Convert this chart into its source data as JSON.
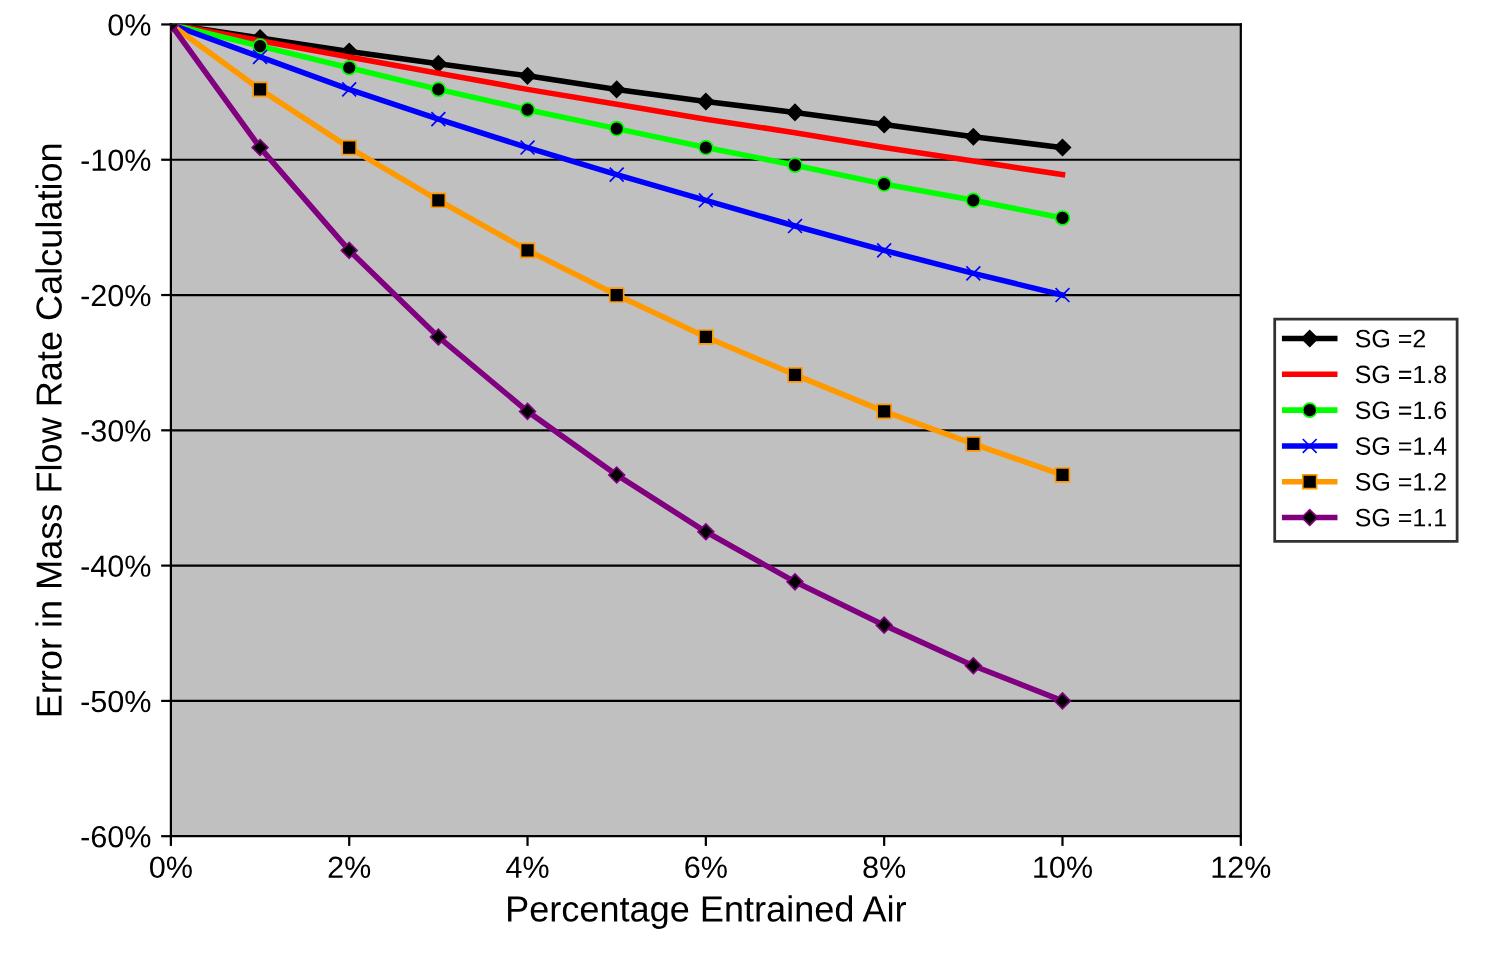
{
  "chart_data": {
    "type": "line",
    "xlabel": "Percentage Entrained Air",
    "ylabel": "Error in Mass Flow Rate Calculation",
    "x": [
      0,
      1,
      2,
      3,
      4,
      5,
      6,
      7,
      8,
      9,
      10
    ],
    "series": [
      {
        "name": "SG =2",
        "color": "#000000",
        "marker": "diamond",
        "values": [
          0,
          -1.0,
          -2.0,
          -2.9,
          -3.8,
          -4.8,
          -5.7,
          -6.5,
          -7.4,
          -8.3,
          -9.1
        ]
      },
      {
        "name": "SG =1.8",
        "color": "#ff0000",
        "marker": "none",
        "values": [
          0,
          -1.2,
          -2.4,
          -3.6,
          -4.8,
          -5.9,
          -7.0,
          -8.0,
          -9.1,
          -10.1,
          -11.1
        ]
      },
      {
        "name": "SG =1.6",
        "color": "#00ff00",
        "marker": "circle",
        "values": [
          0,
          -1.6,
          -3.2,
          -4.8,
          -6.3,
          -7.7,
          -9.1,
          -10.4,
          -11.8,
          -13.0,
          -14.3
        ]
      },
      {
        "name": "SG =1.4",
        "color": "#0000ff",
        "marker": "cross",
        "values": [
          0,
          -2.4,
          -4.8,
          -7.0,
          -9.1,
          -11.1,
          -13.0,
          -14.9,
          -16.7,
          -18.4,
          -20.0
        ]
      },
      {
        "name": "SG =1.2",
        "color": "#ff9900",
        "marker": "square",
        "values": [
          0,
          -4.8,
          -9.1,
          -13.0,
          -16.7,
          -20.0,
          -23.1,
          -25.9,
          -28.6,
          -31.0,
          -33.3
        ]
      },
      {
        "name": "SG =1.1",
        "color": "#800080",
        "marker": "diamond",
        "values": [
          0,
          -9.1,
          -16.7,
          -23.1,
          -28.6,
          -33.3,
          -37.5,
          -41.2,
          -44.4,
          -47.4,
          -50.0
        ]
      }
    ],
    "xlim": [
      0,
      12
    ],
    "xticks": [
      {
        "value": 0,
        "label": "0%"
      },
      {
        "value": 2,
        "label": "2%"
      },
      {
        "value": 4,
        "label": "4%"
      },
      {
        "value": 6,
        "label": "6%"
      },
      {
        "value": 8,
        "label": "8%"
      },
      {
        "value": 10,
        "label": "10%"
      },
      {
        "value": 12,
        "label": "12%"
      }
    ],
    "ylim": [
      -60,
      0
    ],
    "yticks": [
      {
        "value": -60,
        "label": "-60%"
      },
      {
        "value": -50,
        "label": "-50%"
      },
      {
        "value": -40,
        "label": "-40%"
      },
      {
        "value": -30,
        "label": "-30%"
      },
      {
        "value": -20,
        "label": "-20%"
      },
      {
        "value": -10,
        "label": "-10%"
      },
      {
        "value": 0,
        "label": "0%"
      }
    ],
    "grid": "y",
    "legend": "right",
    "line_style": "solid"
  }
}
